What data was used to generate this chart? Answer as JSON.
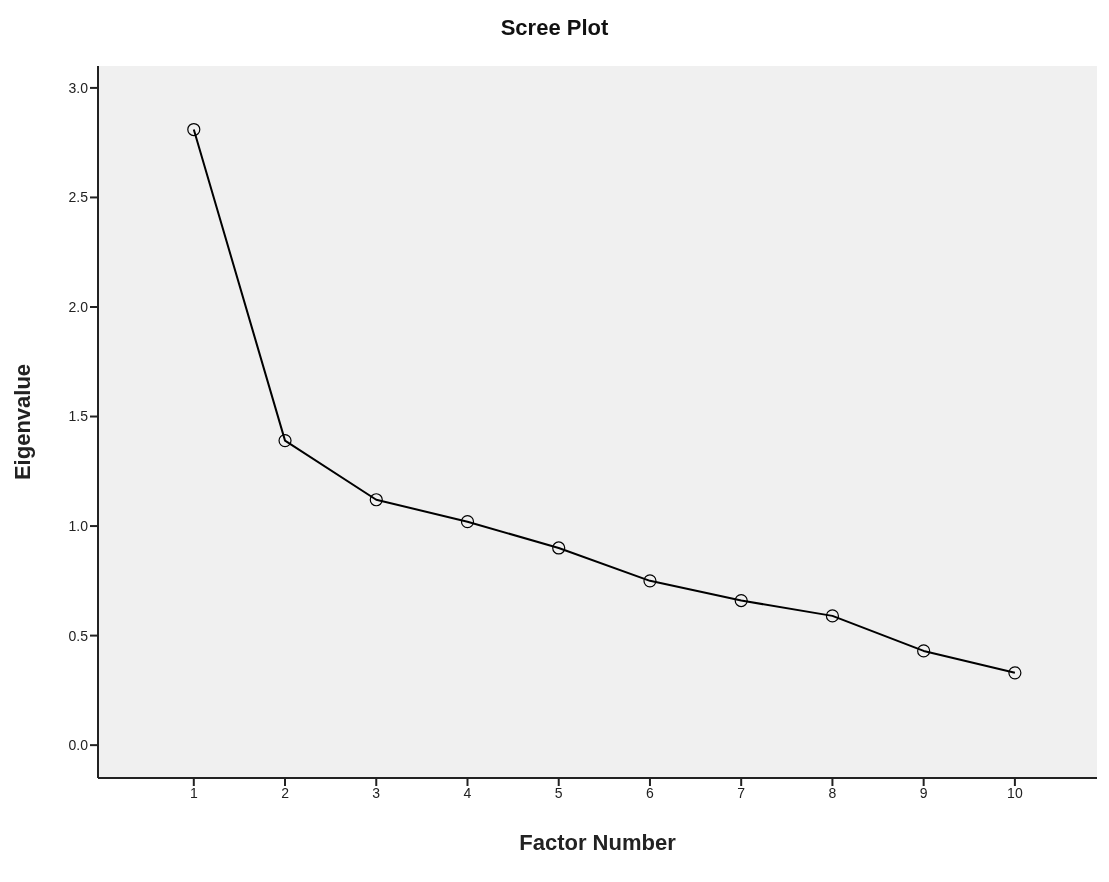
{
  "chart_data": {
    "type": "line",
    "title": "Scree Plot",
    "xlabel": "Factor Number",
    "ylabel": "Eigenvalue",
    "x": [
      1,
      2,
      3,
      4,
      5,
      6,
      7,
      8,
      9,
      10
    ],
    "series": [
      {
        "color": "#000000",
        "values": [
          2.81,
          1.39,
          1.12,
          1.02,
          0.9,
          0.75,
          0.66,
          0.59,
          0.43,
          0.33
        ]
      }
    ],
    "xlim": [
      -0.05,
      10.9
    ],
    "xticks": [
      1,
      2,
      3,
      4,
      5,
      6,
      7,
      8,
      9,
      10
    ],
    "ylim": [
      -0.15,
      3.1
    ],
    "yticks": [
      {
        "value": 0,
        "label": "0.0"
      },
      {
        "value": 0.5,
        "label": "0.5"
      },
      {
        "value": 1,
        "label": "1.0"
      },
      {
        "value": 1.5,
        "label": "1.5"
      },
      {
        "value": 2,
        "label": "2.0"
      },
      {
        "value": 2.5,
        "label": "2.5"
      },
      {
        "value": 3,
        "label": "3.0"
      }
    ],
    "marker": "circle",
    "line_style": "solid",
    "grid": false,
    "legend": false
  }
}
